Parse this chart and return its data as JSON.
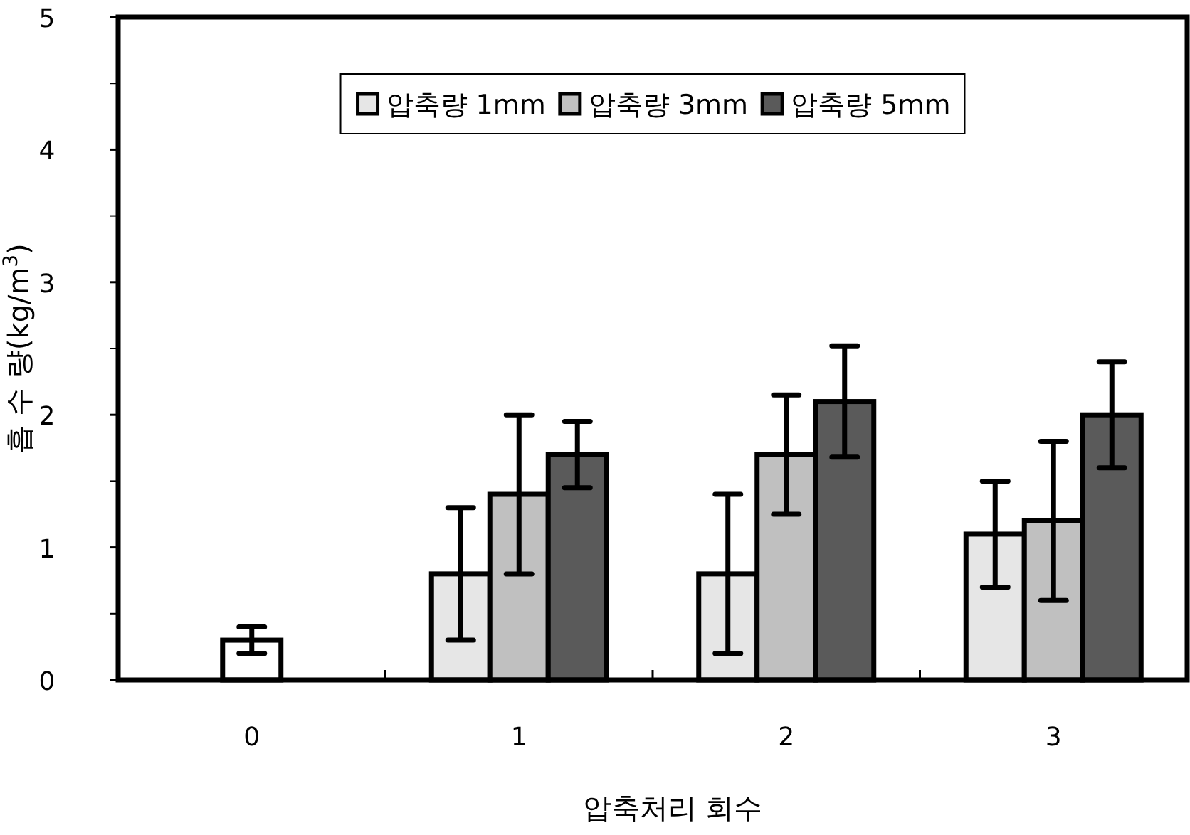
{
  "chart_data": {
    "type": "bar",
    "xlabel": "압축처리 회수",
    "ylabel": "흡 수 량(kg/m$^{3}$)",
    "categories": [
      "0",
      "1",
      "2",
      "3"
    ],
    "series": [
      {
        "name": "압축량 1mm",
        "color": "#e6e6e6",
        "values": [
          0,
          0.8,
          0.8,
          1.1
        ],
        "errors": [
          null,
          0.5,
          0.6,
          0.4
        ]
      },
      {
        "name": "압축량 3mm",
        "color": "#c0c0c0",
        "colors": [
          "#ffffff",
          "#c0c0c0",
          "#c0c0c0",
          "#c0c0c0"
        ],
        "values": [
          0.3,
          1.4,
          1.7,
          1.2
        ],
        "errors": [
          0.1,
          0.6,
          0.45,
          0.6
        ]
      },
      {
        "name": "압축량 5mm",
        "color": "#5a5a5a",
        "values": [
          0,
          1.7,
          2.1,
          2.0
        ],
        "errors": [
          null,
          0.25,
          0.42,
          0.4
        ]
      }
    ],
    "ylim": [
      0,
      5
    ],
    "yticks": [
      0,
      1,
      2,
      3,
      4,
      5
    ],
    "legend": "top",
    "grid": false
  }
}
